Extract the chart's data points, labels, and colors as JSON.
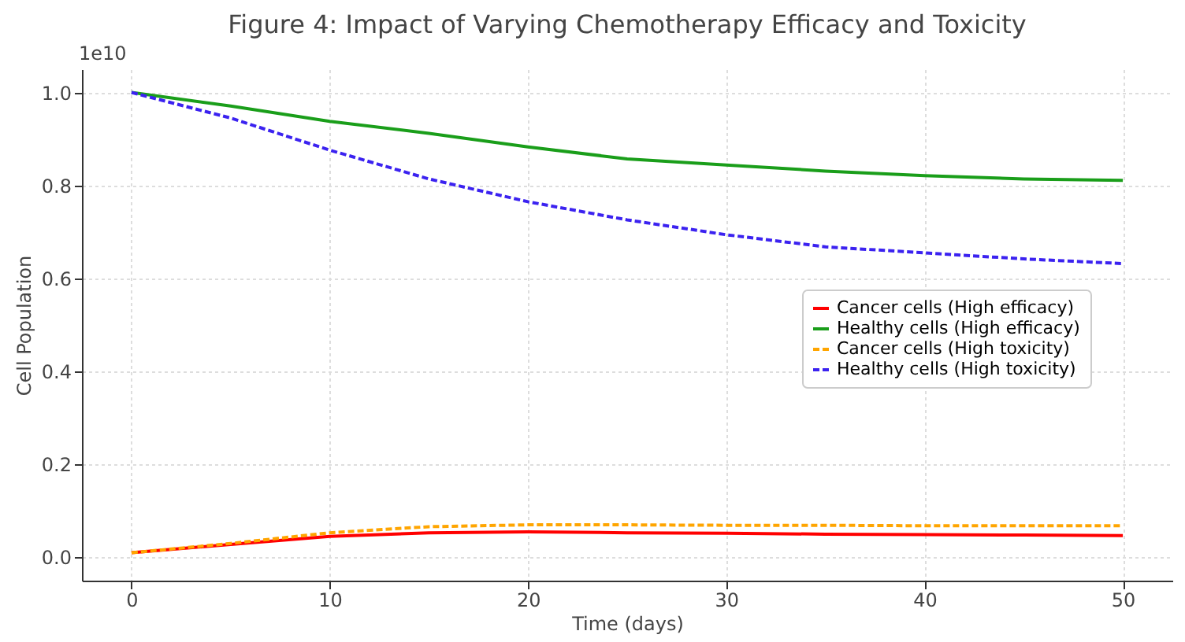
{
  "chart_data": {
    "type": "line",
    "title": "Figure 4: Impact of Varying Chemotherapy Efficacy and Toxicity",
    "xlabel": "Time (days)",
    "ylabel": "Cell Population",
    "x": [
      0,
      5,
      10,
      15,
      20,
      25,
      30,
      35,
      40,
      45,
      50
    ],
    "series": [
      {
        "name": "Cancer cells (High efficacy)",
        "color": "#ff0000",
        "line_style": "solid",
        "values": [
          0.01,
          0.028,
          0.045,
          0.053,
          0.055,
          0.053,
          0.052,
          0.05,
          0.049,
          0.048,
          0.047
        ]
      },
      {
        "name": "Healthy cells (High efficacy)",
        "color": "#1a9e1a",
        "line_style": "solid",
        "values": [
          1.0,
          0.971,
          0.938,
          0.912,
          0.883,
          0.857,
          0.844,
          0.831,
          0.821,
          0.814,
          0.811
        ]
      },
      {
        "name": "Cancer cells (High toxicity)",
        "color": "#ffa500",
        "line_style": "dashed",
        "values": [
          0.01,
          0.03,
          0.053,
          0.066,
          0.07,
          0.07,
          0.069,
          0.069,
          0.068,
          0.068,
          0.068
        ]
      },
      {
        "name": "Healthy cells (High toxicity)",
        "color": "#3b22f0",
        "line_style": "dashed",
        "values": [
          1.0,
          0.945,
          0.876,
          0.814,
          0.765,
          0.726,
          0.694,
          0.668,
          0.655,
          0.642,
          0.632
        ]
      }
    ],
    "xlim": [
      -2.5,
      52.5
    ],
    "ylim": [
      -0.05,
      1.05
    ],
    "xticks": [
      0,
      10,
      20,
      30,
      40,
      50
    ],
    "yticks": [
      {
        "value": 0,
        "label": "0.0"
      },
      {
        "value": 0.2,
        "label": "0.2"
      },
      {
        "value": 0.4,
        "label": "0.4"
      },
      {
        "value": 0.6,
        "label": "0.6"
      },
      {
        "value": 0.8,
        "label": "0.8"
      },
      {
        "value": 1.0,
        "label": "1.0"
      }
    ],
    "annotations": [
      "1e10"
    ],
    "grid": true,
    "legend": "right"
  }
}
